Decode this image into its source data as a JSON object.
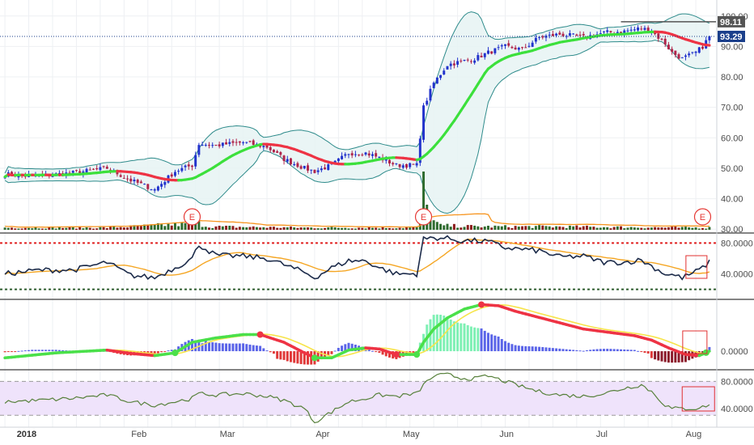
{
  "chart_data": {
    "type": "candlestick",
    "x_ticks": [
      {
        "label": "2018",
        "bold": true,
        "bar": 4
      },
      {
        "label": "Feb",
        "bar": 37
      },
      {
        "label": "Mar",
        "bar": 63
      },
      {
        "label": "Apr",
        "bar": 91
      },
      {
        "label": "May",
        "bar": 117
      },
      {
        "label": "Jun",
        "bar": 145
      },
      {
        "label": "Jul",
        "bar": 173
      },
      {
        "label": "Aug",
        "bar": 200
      }
    ],
    "price": {
      "y_ticks": [
        "30.00",
        "40.00",
        "50.00",
        "60.00",
        "70.00",
        "80.00",
        "90.00",
        "100.00"
      ],
      "ylim": [
        29,
        101
      ],
      "last_price": "93.29",
      "high_price": "98.11",
      "anchors": [
        [
          0,
          48
        ],
        [
          10,
          47.5
        ],
        [
          20,
          48.5
        ],
        [
          30,
          50
        ],
        [
          37,
          46
        ],
        [
          44,
          43
        ],
        [
          50,
          49
        ],
        [
          55,
          51
        ],
        [
          57,
          58
        ],
        [
          62,
          57.5
        ],
        [
          70,
          58.5
        ],
        [
          77,
          57
        ],
        [
          82,
          53
        ],
        [
          88,
          50
        ],
        [
          91,
          49
        ],
        [
          96,
          51
        ],
        [
          101,
          55
        ],
        [
          106,
          55
        ],
        [
          110,
          53.5
        ],
        [
          115,
          51
        ],
        [
          121,
          51
        ],
        [
          123,
          70
        ],
        [
          126,
          78
        ],
        [
          130,
          84
        ],
        [
          134,
          85
        ],
        [
          138,
          86
        ],
        [
          142,
          88
        ],
        [
          147,
          90
        ],
        [
          152,
          89
        ],
        [
          157,
          93
        ],
        [
          163,
          94
        ],
        [
          170,
          93
        ],
        [
          176,
          94.5
        ],
        [
          182,
          95
        ],
        [
          187,
          96
        ],
        [
          190,
          95
        ],
        [
          194,
          91
        ],
        [
          196,
          88
        ],
        [
          199,
          86
        ],
        [
          203,
          88
        ],
        [
          205,
          90
        ],
        [
          207,
          93.29
        ]
      ],
      "volume": {
        "ylim_max": 55,
        "anchors": [
          [
            0,
            2
          ],
          [
            30,
            2
          ],
          [
            57,
            6
          ],
          [
            60,
            3
          ],
          [
            88,
            2
          ],
          [
            121,
            2
          ],
          [
            122,
            12
          ],
          [
            123,
            55
          ],
          [
            124,
            20
          ],
          [
            126,
            8
          ],
          [
            128,
            4
          ],
          [
            140,
            3
          ],
          [
            160,
            3
          ],
          [
            200,
            2
          ],
          [
            207,
            2
          ]
        ]
      },
      "earnings_markers": [
        {
          "label": "E",
          "bar": 55
        },
        {
          "label": "E",
          "bar": 123
        },
        {
          "label": "E",
          "bar": 205
        }
      ]
    },
    "rsi_panel": {
      "y_ticks": [
        "80.0000",
        "40.0000"
      ],
      "ylim": [
        8,
        92
      ],
      "overbought": 80,
      "oversold": 20,
      "anchors": [
        [
          0,
          40
        ],
        [
          10,
          45
        ],
        [
          20,
          45
        ],
        [
          30,
          55
        ],
        [
          37,
          38
        ],
        [
          44,
          35
        ],
        [
          50,
          48
        ],
        [
          55,
          60
        ],
        [
          57,
          78
        ],
        [
          62,
          64
        ],
        [
          70,
          63
        ],
        [
          77,
          60
        ],
        [
          82,
          52
        ],
        [
          88,
          42
        ],
        [
          91,
          35
        ],
        [
          96,
          48
        ],
        [
          101,
          57
        ],
        [
          106,
          57
        ],
        [
          110,
          48
        ],
        [
          115,
          40
        ],
        [
          121,
          40
        ],
        [
          123,
          85
        ],
        [
          126,
          87
        ],
        [
          130,
          86
        ],
        [
          134,
          83
        ],
        [
          138,
          83
        ],
        [
          142,
          82
        ],
        [
          147,
          74
        ],
        [
          152,
          72
        ],
        [
          157,
          70
        ],
        [
          163,
          62
        ],
        [
          170,
          63
        ],
        [
          176,
          55
        ],
        [
          182,
          55
        ],
        [
          187,
          58
        ],
        [
          190,
          50
        ],
        [
          194,
          40
        ],
        [
          196,
          39
        ],
        [
          199,
          35
        ],
        [
          203,
          43
        ],
        [
          205,
          48
        ],
        [
          207,
          55
        ]
      ]
    },
    "macd_panel": {
      "y_ticks": [
        "0.0000"
      ],
      "ylim": [
        -1.6,
        4.6
      ],
      "anchors": [
        [
          0,
          -0.6
        ],
        [
          15,
          -0.15
        ],
        [
          30,
          0.1
        ],
        [
          37,
          -0.2
        ],
        [
          44,
          -0.4
        ],
        [
          50,
          -0.15
        ],
        [
          55,
          0.8
        ],
        [
          62,
          1.2
        ],
        [
          70,
          1.5
        ],
        [
          75,
          1.5
        ],
        [
          82,
          0.8
        ],
        [
          88,
          -0.15
        ],
        [
          91,
          -0.6
        ],
        [
          96,
          -0.6
        ],
        [
          101,
          0.1
        ],
        [
          106,
          0.3
        ],
        [
          110,
          0.2
        ],
        [
          115,
          -0.3
        ],
        [
          121,
          -0.3
        ],
        [
          123,
          0.8
        ],
        [
          126,
          2
        ],
        [
          130,
          3
        ],
        [
          135,
          3.8
        ],
        [
          140,
          4.2
        ],
        [
          145,
          4.1
        ],
        [
          150,
          3.6
        ],
        [
          155,
          3.2
        ],
        [
          160,
          2.8
        ],
        [
          165,
          2.4
        ],
        [
          170,
          2
        ],
        [
          175,
          1.8
        ],
        [
          180,
          1.6
        ],
        [
          185,
          1.4
        ],
        [
          190,
          1
        ],
        [
          195,
          0.3
        ],
        [
          200,
          -0.3
        ],
        [
          204,
          -0.4
        ],
        [
          207,
          0
        ]
      ]
    },
    "osc_panel": {
      "y_ticks": [
        "80.0000",
        "40.0000"
      ],
      "ylim": [
        16,
        96
      ],
      "upper": 80,
      "lower": 30,
      "anchors": [
        [
          0,
          50
        ],
        [
          10,
          52
        ],
        [
          20,
          55
        ],
        [
          30,
          60
        ],
        [
          37,
          50
        ],
        [
          44,
          45
        ],
        [
          50,
          50
        ],
        [
          55,
          55
        ],
        [
          57,
          62
        ],
        [
          62,
          60
        ],
        [
          70,
          62
        ],
        [
          77,
          58
        ],
        [
          82,
          52
        ],
        [
          88,
          40
        ],
        [
          91,
          20
        ],
        [
          96,
          35
        ],
        [
          101,
          50
        ],
        [
          106,
          55
        ],
        [
          110,
          60
        ],
        [
          115,
          58
        ],
        [
          121,
          62
        ],
        [
          123,
          75
        ],
        [
          126,
          88
        ],
        [
          130,
          90
        ],
        [
          134,
          85
        ],
        [
          138,
          84
        ],
        [
          142,
          88
        ],
        [
          147,
          80
        ],
        [
          152,
          72
        ],
        [
          157,
          65
        ],
        [
          163,
          60
        ],
        [
          170,
          58
        ],
        [
          176,
          62
        ],
        [
          182,
          70
        ],
        [
          187,
          75
        ],
        [
          190,
          65
        ],
        [
          194,
          45
        ],
        [
          196,
          40
        ],
        [
          199,
          40
        ],
        [
          203,
          40
        ],
        [
          205,
          42
        ],
        [
          207,
          46
        ]
      ]
    }
  }
}
